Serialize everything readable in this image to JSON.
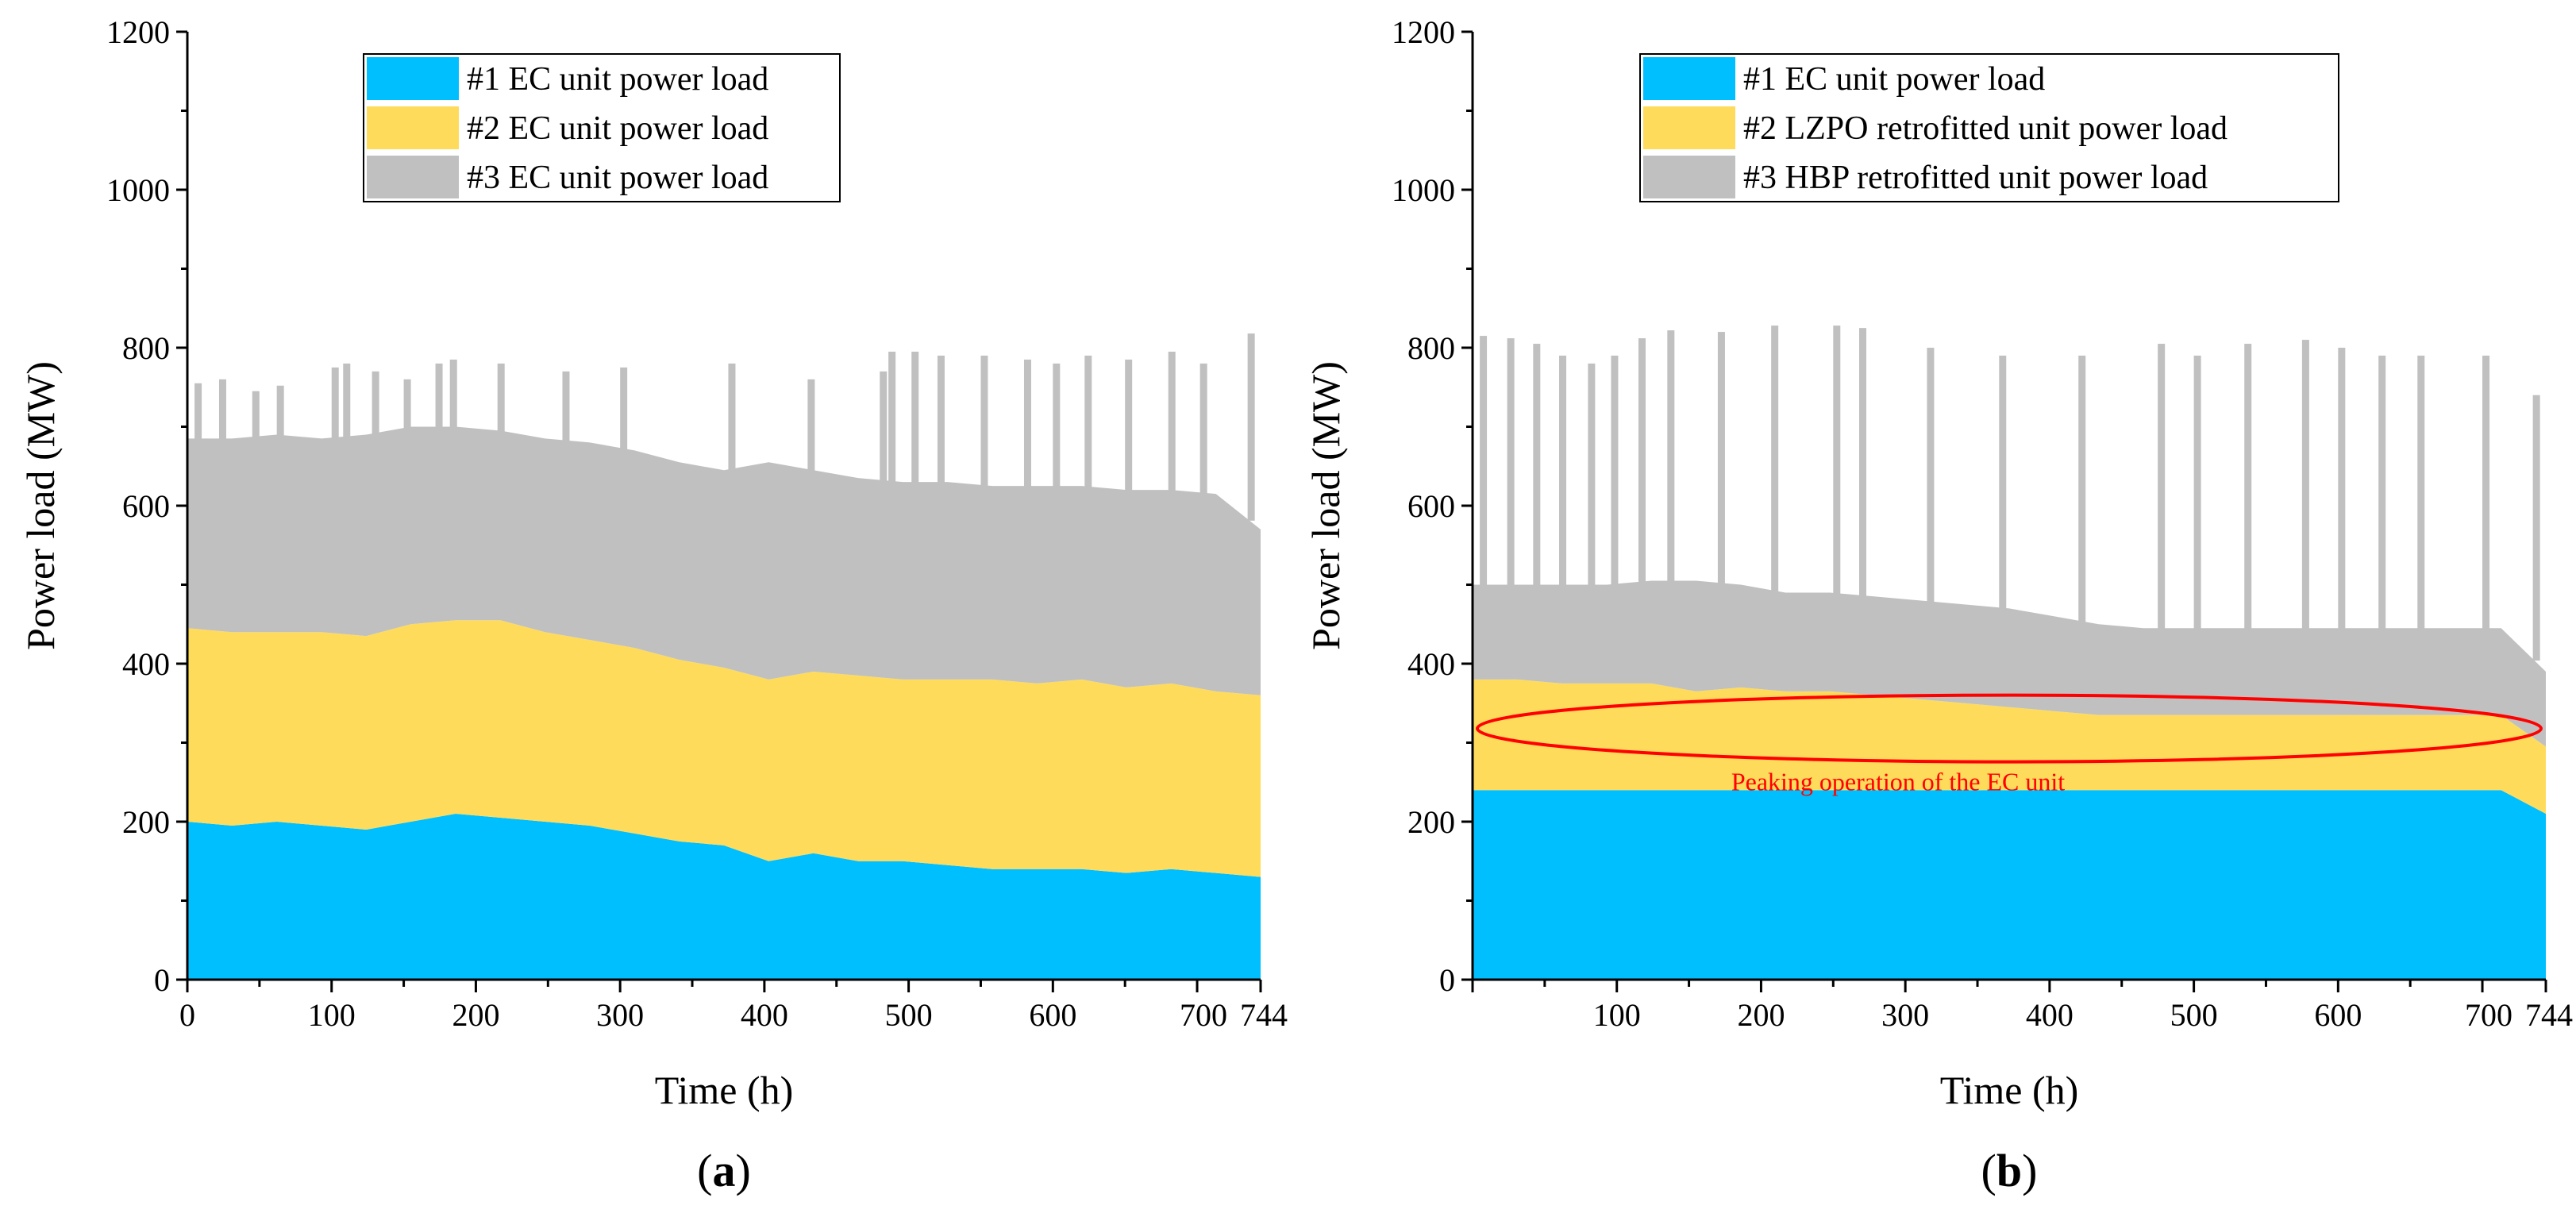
{
  "colors": {
    "unit1": "#00BFFF",
    "unit2": "#FFDB5C",
    "unit3": "#C0C0C0",
    "annotation": "#FF0000",
    "axis": "#000000"
  },
  "chart_data": [
    {
      "type": "area",
      "stacked": true,
      "panel_label": "a",
      "xlabel": "Time (h)",
      "ylabel": "Power load (MW)",
      "xlim": [
        0,
        744
      ],
      "ylim": [
        0,
        1200
      ],
      "x_ticks": [
        0,
        100,
        200,
        300,
        400,
        500,
        600,
        700,
        744
      ],
      "x_tick_labels": [
        "0",
        "100",
        "200",
        "300",
        "400",
        "500",
        "600",
        "700",
        "744"
      ],
      "y_ticks": [
        0,
        200,
        400,
        600,
        800,
        1000,
        1200
      ],
      "y_tick_labels": [
        "0",
        "200",
        "400",
        "600",
        "800",
        "1000",
        "1200"
      ],
      "legend": [
        "#1 EC unit power load",
        "#2 EC unit power load",
        "#3 EC unit power load"
      ],
      "legend_position": "top-center",
      "x": [
        0,
        31,
        62,
        93,
        124,
        155,
        186,
        217,
        248,
        279,
        310,
        341,
        372,
        403,
        434,
        465,
        496,
        527,
        558,
        589,
        620,
        651,
        682,
        713,
        744
      ],
      "series": [
        {
          "name": "#1 EC unit power load",
          "values": [
            200,
            195,
            200,
            195,
            190,
            200,
            210,
            205,
            200,
            195,
            185,
            175,
            170,
            150,
            160,
            150,
            150,
            145,
            140,
            140,
            140,
            135,
            140,
            135,
            130
          ]
        },
        {
          "name": "#2 EC unit power load",
          "values": [
            245,
            245,
            240,
            245,
            245,
            250,
            245,
            250,
            240,
            235,
            235,
            230,
            225,
            230,
            230,
            235,
            230,
            235,
            240,
            235,
            240,
            235,
            235,
            230,
            230
          ]
        },
        {
          "name": "#3 EC unit power load",
          "values": [
            240,
            245,
            250,
            245,
            255,
            250,
            245,
            240,
            245,
            250,
            250,
            250,
            250,
            275,
            255,
            250,
            250,
            250,
            245,
            250,
            245,
            250,
            245,
            250,
            210
          ]
        }
      ],
      "spikes": [
        {
          "x": 5,
          "y": 755
        },
        {
          "x": 22,
          "y": 760
        },
        {
          "x": 45,
          "y": 745
        },
        {
          "x": 62,
          "y": 752
        },
        {
          "x": 100,
          "y": 775
        },
        {
          "x": 108,
          "y": 780
        },
        {
          "x": 128,
          "y": 770
        },
        {
          "x": 150,
          "y": 760
        },
        {
          "x": 172,
          "y": 780
        },
        {
          "x": 182,
          "y": 785
        },
        {
          "x": 215,
          "y": 780
        },
        {
          "x": 260,
          "y": 770
        },
        {
          "x": 300,
          "y": 775
        },
        {
          "x": 375,
          "y": 780
        },
        {
          "x": 430,
          "y": 760
        },
        {
          "x": 480,
          "y": 770
        },
        {
          "x": 486,
          "y": 795
        },
        {
          "x": 502,
          "y": 795
        },
        {
          "x": 520,
          "y": 790
        },
        {
          "x": 550,
          "y": 790
        },
        {
          "x": 580,
          "y": 785
        },
        {
          "x": 600,
          "y": 780
        },
        {
          "x": 622,
          "y": 790
        },
        {
          "x": 650,
          "y": 785
        },
        {
          "x": 680,
          "y": 795
        },
        {
          "x": 702,
          "y": 780
        },
        {
          "x": 735,
          "y": 818
        }
      ]
    },
    {
      "type": "area",
      "stacked": true,
      "panel_label": "b",
      "xlabel": "Time (h)",
      "ylabel": "Power load (MW)",
      "xlim": [
        0,
        744
      ],
      "ylim": [
        0,
        1200
      ],
      "x_ticks": [
        100,
        200,
        300,
        400,
        500,
        600,
        700,
        744
      ],
      "x_tick_labels": [
        "100",
        "200",
        "300",
        "400",
        "500",
        "600",
        "700",
        "744"
      ],
      "y_ticks": [
        0,
        200,
        400,
        600,
        800,
        1000,
        1200
      ],
      "y_tick_labels": [
        "0",
        "200",
        "400",
        "600",
        "800",
        "1000",
        "1200"
      ],
      "legend": [
        "#1 EC unit power load",
        "#2 LZPO retrofitted unit power load",
        "#3 HBP retrofitted unit power load"
      ],
      "legend_position": "top-center",
      "annotation": "Peaking operation of the EC unit",
      "annotation_center": {
        "x": 372,
        "y": 318
      },
      "x": [
        0,
        31,
        62,
        93,
        124,
        155,
        186,
        217,
        248,
        279,
        310,
        341,
        372,
        403,
        434,
        465,
        496,
        527,
        558,
        589,
        620,
        651,
        682,
        713,
        744
      ],
      "series": [
        {
          "name": "#1 EC unit power load",
          "values": [
            240,
            240,
            240,
            240,
            240,
            240,
            240,
            240,
            240,
            240,
            240,
            240,
            240,
            240,
            240,
            240,
            240,
            240,
            240,
            240,
            240,
            240,
            240,
            240,
            210
          ]
        },
        {
          "name": "#2 LZPO retrofitted unit power load",
          "values": [
            140,
            140,
            135,
            135,
            135,
            125,
            130,
            125,
            125,
            120,
            115,
            110,
            105,
            100,
            95,
            95,
            95,
            95,
            95,
            95,
            95,
            95,
            95,
            95,
            85
          ]
        },
        {
          "name": "#3 HBP retrofitted unit power load",
          "values": [
            120,
            120,
            125,
            125,
            130,
            140,
            130,
            125,
            125,
            125,
            125,
            125,
            125,
            120,
            115,
            110,
            110,
            110,
            110,
            110,
            110,
            110,
            110,
            110,
            95
          ]
        }
      ],
      "spikes": [
        {
          "x": 5,
          "y": 815
        },
        {
          "x": 24,
          "y": 812
        },
        {
          "x": 42,
          "y": 805
        },
        {
          "x": 60,
          "y": 790
        },
        {
          "x": 80,
          "y": 780
        },
        {
          "x": 96,
          "y": 790
        },
        {
          "x": 115,
          "y": 812
        },
        {
          "x": 135,
          "y": 822
        },
        {
          "x": 170,
          "y": 820
        },
        {
          "x": 207,
          "y": 828
        },
        {
          "x": 250,
          "y": 828
        },
        {
          "x": 268,
          "y": 825
        },
        {
          "x": 315,
          "y": 800
        },
        {
          "x": 365,
          "y": 790
        },
        {
          "x": 420,
          "y": 790
        },
        {
          "x": 475,
          "y": 805
        },
        {
          "x": 500,
          "y": 790
        },
        {
          "x": 535,
          "y": 805
        },
        {
          "x": 575,
          "y": 810
        },
        {
          "x": 600,
          "y": 800
        },
        {
          "x": 628,
          "y": 790
        },
        {
          "x": 655,
          "y": 790
        },
        {
          "x": 700,
          "y": 790
        },
        {
          "x": 735,
          "y": 740
        }
      ]
    }
  ]
}
